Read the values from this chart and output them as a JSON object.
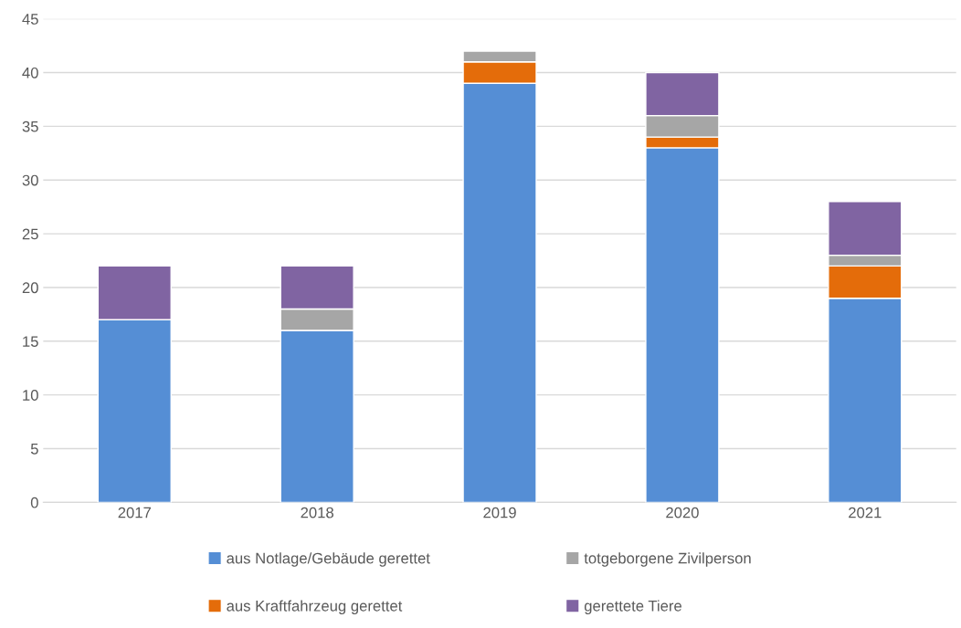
{
  "chart_data": {
    "type": "bar",
    "stacked": true,
    "categories": [
      "2017",
      "2018",
      "2019",
      "2020",
      "2021"
    ],
    "series": [
      {
        "name": "aus Notlage/Gebäude gerettet",
        "color": "#558ed5",
        "values": [
          17,
          16,
          39,
          33,
          19
        ]
      },
      {
        "name": "aus Kraftfahrzeug gerettet",
        "color": "#e46c0a",
        "values": [
          0,
          0,
          2,
          1,
          3
        ]
      },
      {
        "name": "totgeborgene Zivilperson",
        "color": "#a6a6a6",
        "values": [
          0,
          2,
          1,
          2,
          1
        ]
      },
      {
        "name": "gerettete Tiere",
        "color": "#8064a2",
        "values": [
          5,
          4,
          0,
          4,
          5
        ]
      }
    ],
    "ylim": [
      0,
      45
    ],
    "yticks": [
      0,
      5,
      10,
      15,
      20,
      25,
      30,
      35,
      40,
      45
    ],
    "grid": "y",
    "legend": "bottom"
  }
}
